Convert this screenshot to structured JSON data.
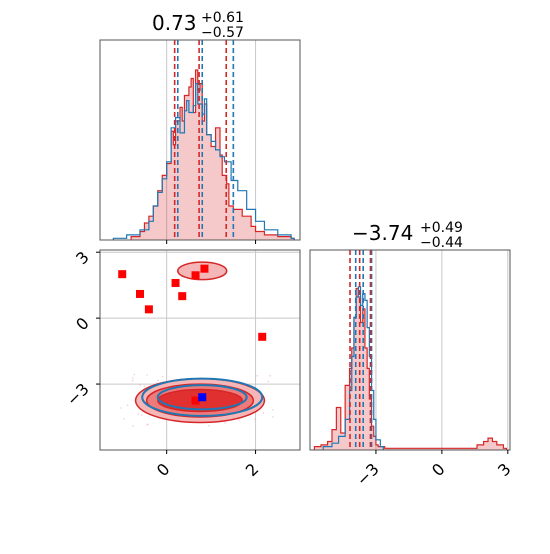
{
  "chart_data": {
    "type": "corner",
    "colors": {
      "posterior_a": "#d62728",
      "posterior_b": "#1f77b4",
      "marker_red": "#ff0000",
      "marker_blue": "#0000ff"
    },
    "grid": true,
    "parameters": [
      {
        "title_main": "0.73",
        "title_plus": "+0.61",
        "title_minus": "−0.57",
        "median": 0.73,
        "range": [
          -1.5,
          3.0
        ],
        "ticks": [
          0,
          2
        ],
        "tick_labels": [
          "0",
          "2"
        ],
        "quantiles": {
          "red": [
            0.18,
            0.73,
            1.34
          ],
          "blue": [
            0.25,
            0.8,
            1.5
          ]
        }
      },
      {
        "title_main": "−3.74",
        "title_plus": "+0.49",
        "title_minus": "−0.44",
        "median": -3.74,
        "range": [
          -6.0,
          3.1
        ],
        "ticks": [
          -3,
          0,
          3
        ],
        "tick_labels": [
          "−3",
          "0",
          "3"
        ],
        "quantiles": {
          "red": [
            -4.18,
            -3.74,
            -3.25
          ],
          "blue": [
            -3.92,
            -3.58,
            -3.2
          ]
        }
      }
    ],
    "hist1": {
      "red": {
        "x": [
          -0.8,
          -0.6,
          -0.5,
          -0.4,
          -0.3,
          -0.2,
          -0.1,
          0.0,
          0.1,
          0.15,
          0.2,
          0.3,
          0.35,
          0.4,
          0.5,
          0.55,
          0.6,
          0.65,
          0.7,
          0.75,
          0.8,
          0.85,
          0.9,
          1.0,
          1.1,
          1.2,
          1.25,
          1.35,
          1.4,
          1.5,
          1.7,
          1.9,
          2.0,
          2.2,
          2.5,
          2.8
        ],
        "y": [
          0.02,
          0.05,
          0.1,
          0.14,
          0.2,
          0.29,
          0.38,
          0.45,
          0.64,
          0.56,
          0.7,
          0.78,
          0.7,
          0.85,
          0.9,
          0.95,
          0.75,
          1.0,
          0.88,
          0.92,
          0.7,
          0.8,
          0.62,
          0.55,
          0.66,
          0.5,
          0.38,
          0.33,
          0.2,
          0.18,
          0.14,
          0.08,
          0.05,
          0.03,
          0.02,
          0.01
        ]
      },
      "blue": {
        "x": [
          -1.2,
          -0.9,
          -0.6,
          -0.4,
          -0.3,
          -0.2,
          -0.1,
          0.0,
          0.1,
          0.2,
          0.3,
          0.4,
          0.45,
          0.5,
          0.6,
          0.65,
          0.7,
          0.8,
          0.85,
          0.9,
          1.0,
          1.1,
          1.2,
          1.3,
          1.45,
          1.6,
          1.8,
          2.0,
          2.2,
          2.5,
          2.8
        ],
        "y": [
          0.01,
          0.03,
          0.06,
          0.11,
          0.2,
          0.28,
          0.36,
          0.46,
          0.66,
          0.72,
          0.63,
          0.76,
          0.82,
          0.75,
          0.79,
          0.92,
          0.8,
          0.74,
          0.83,
          0.62,
          0.58,
          0.53,
          0.49,
          0.46,
          0.35,
          0.29,
          0.18,
          0.11,
          0.06,
          0.03,
          0.01
        ]
      }
    },
    "hist2": {
      "red": {
        "x": [
          -5.8,
          -5.5,
          -5.2,
          -5.0,
          -4.8,
          -4.6,
          -4.4,
          -4.2,
          -4.1,
          -4.0,
          -3.9,
          -3.8,
          -3.7,
          -3.6,
          -3.5,
          -3.4,
          -3.3,
          -3.2,
          -3.1,
          -3.0,
          -2.9,
          -2.6,
          1.3,
          1.6,
          1.9,
          2.1,
          2.3,
          2.5,
          2.8
        ],
        "y": [
          0.02,
          0.03,
          0.05,
          0.12,
          0.25,
          0.1,
          0.38,
          0.48,
          0.6,
          0.78,
          0.95,
          0.9,
          0.75,
          0.83,
          0.6,
          0.48,
          0.3,
          0.14,
          0.08,
          0.03,
          0.02,
          0.01,
          0.01,
          0.03,
          0.05,
          0.07,
          0.05,
          0.03,
          0.01
        ]
      },
      "blue": {
        "x": [
          -5.4,
          -5.0,
          -4.7,
          -4.4,
          -4.2,
          -4.1,
          -4.0,
          -3.9,
          -3.8,
          -3.7,
          -3.6,
          -3.5,
          -3.4,
          -3.3,
          -3.2,
          -3.1,
          -3.0,
          -2.8
        ],
        "y": [
          0.02,
          0.04,
          0.08,
          0.18,
          0.35,
          0.55,
          0.78,
          0.9,
          0.96,
          0.85,
          0.92,
          0.88,
          0.72,
          0.55,
          0.35,
          0.18,
          0.06,
          0.02
        ]
      }
    },
    "red_squares": [
      [
        -1.0,
        2.0
      ],
      [
        -0.6,
        1.1
      ],
      [
        -0.4,
        0.4
      ],
      [
        0.2,
        1.6
      ],
      [
        0.35,
        1.0
      ],
      [
        0.65,
        1.95
      ],
      [
        0.85,
        2.25
      ],
      [
        2.15,
        -0.85
      ],
      [
        0.65,
        -3.75
      ]
    ],
    "blue_squares": [
      [
        0.8,
        -3.6
      ]
    ],
    "contours": {
      "red": [
        {
          "cx": 0.75,
          "cy": -3.75,
          "rx": 1.45,
          "ry": 1.0
        },
        {
          "cx": 0.75,
          "cy": -3.75,
          "rx": 1.2,
          "ry": 0.75
        },
        {
          "cx": 0.75,
          "cy": -3.75,
          "rx": 0.95,
          "ry": 0.5
        }
      ],
      "blue": [
        {
          "cx": 0.8,
          "cy": -3.6,
          "rx": 1.35,
          "ry": 0.85
        },
        {
          "cx": 0.8,
          "cy": -3.6,
          "rx": 1.0,
          "ry": 0.55
        }
      ],
      "secondary_red": {
        "cx": 0.8,
        "cy": 2.15,
        "rx": 0.55,
        "ry": 0.4
      }
    }
  }
}
